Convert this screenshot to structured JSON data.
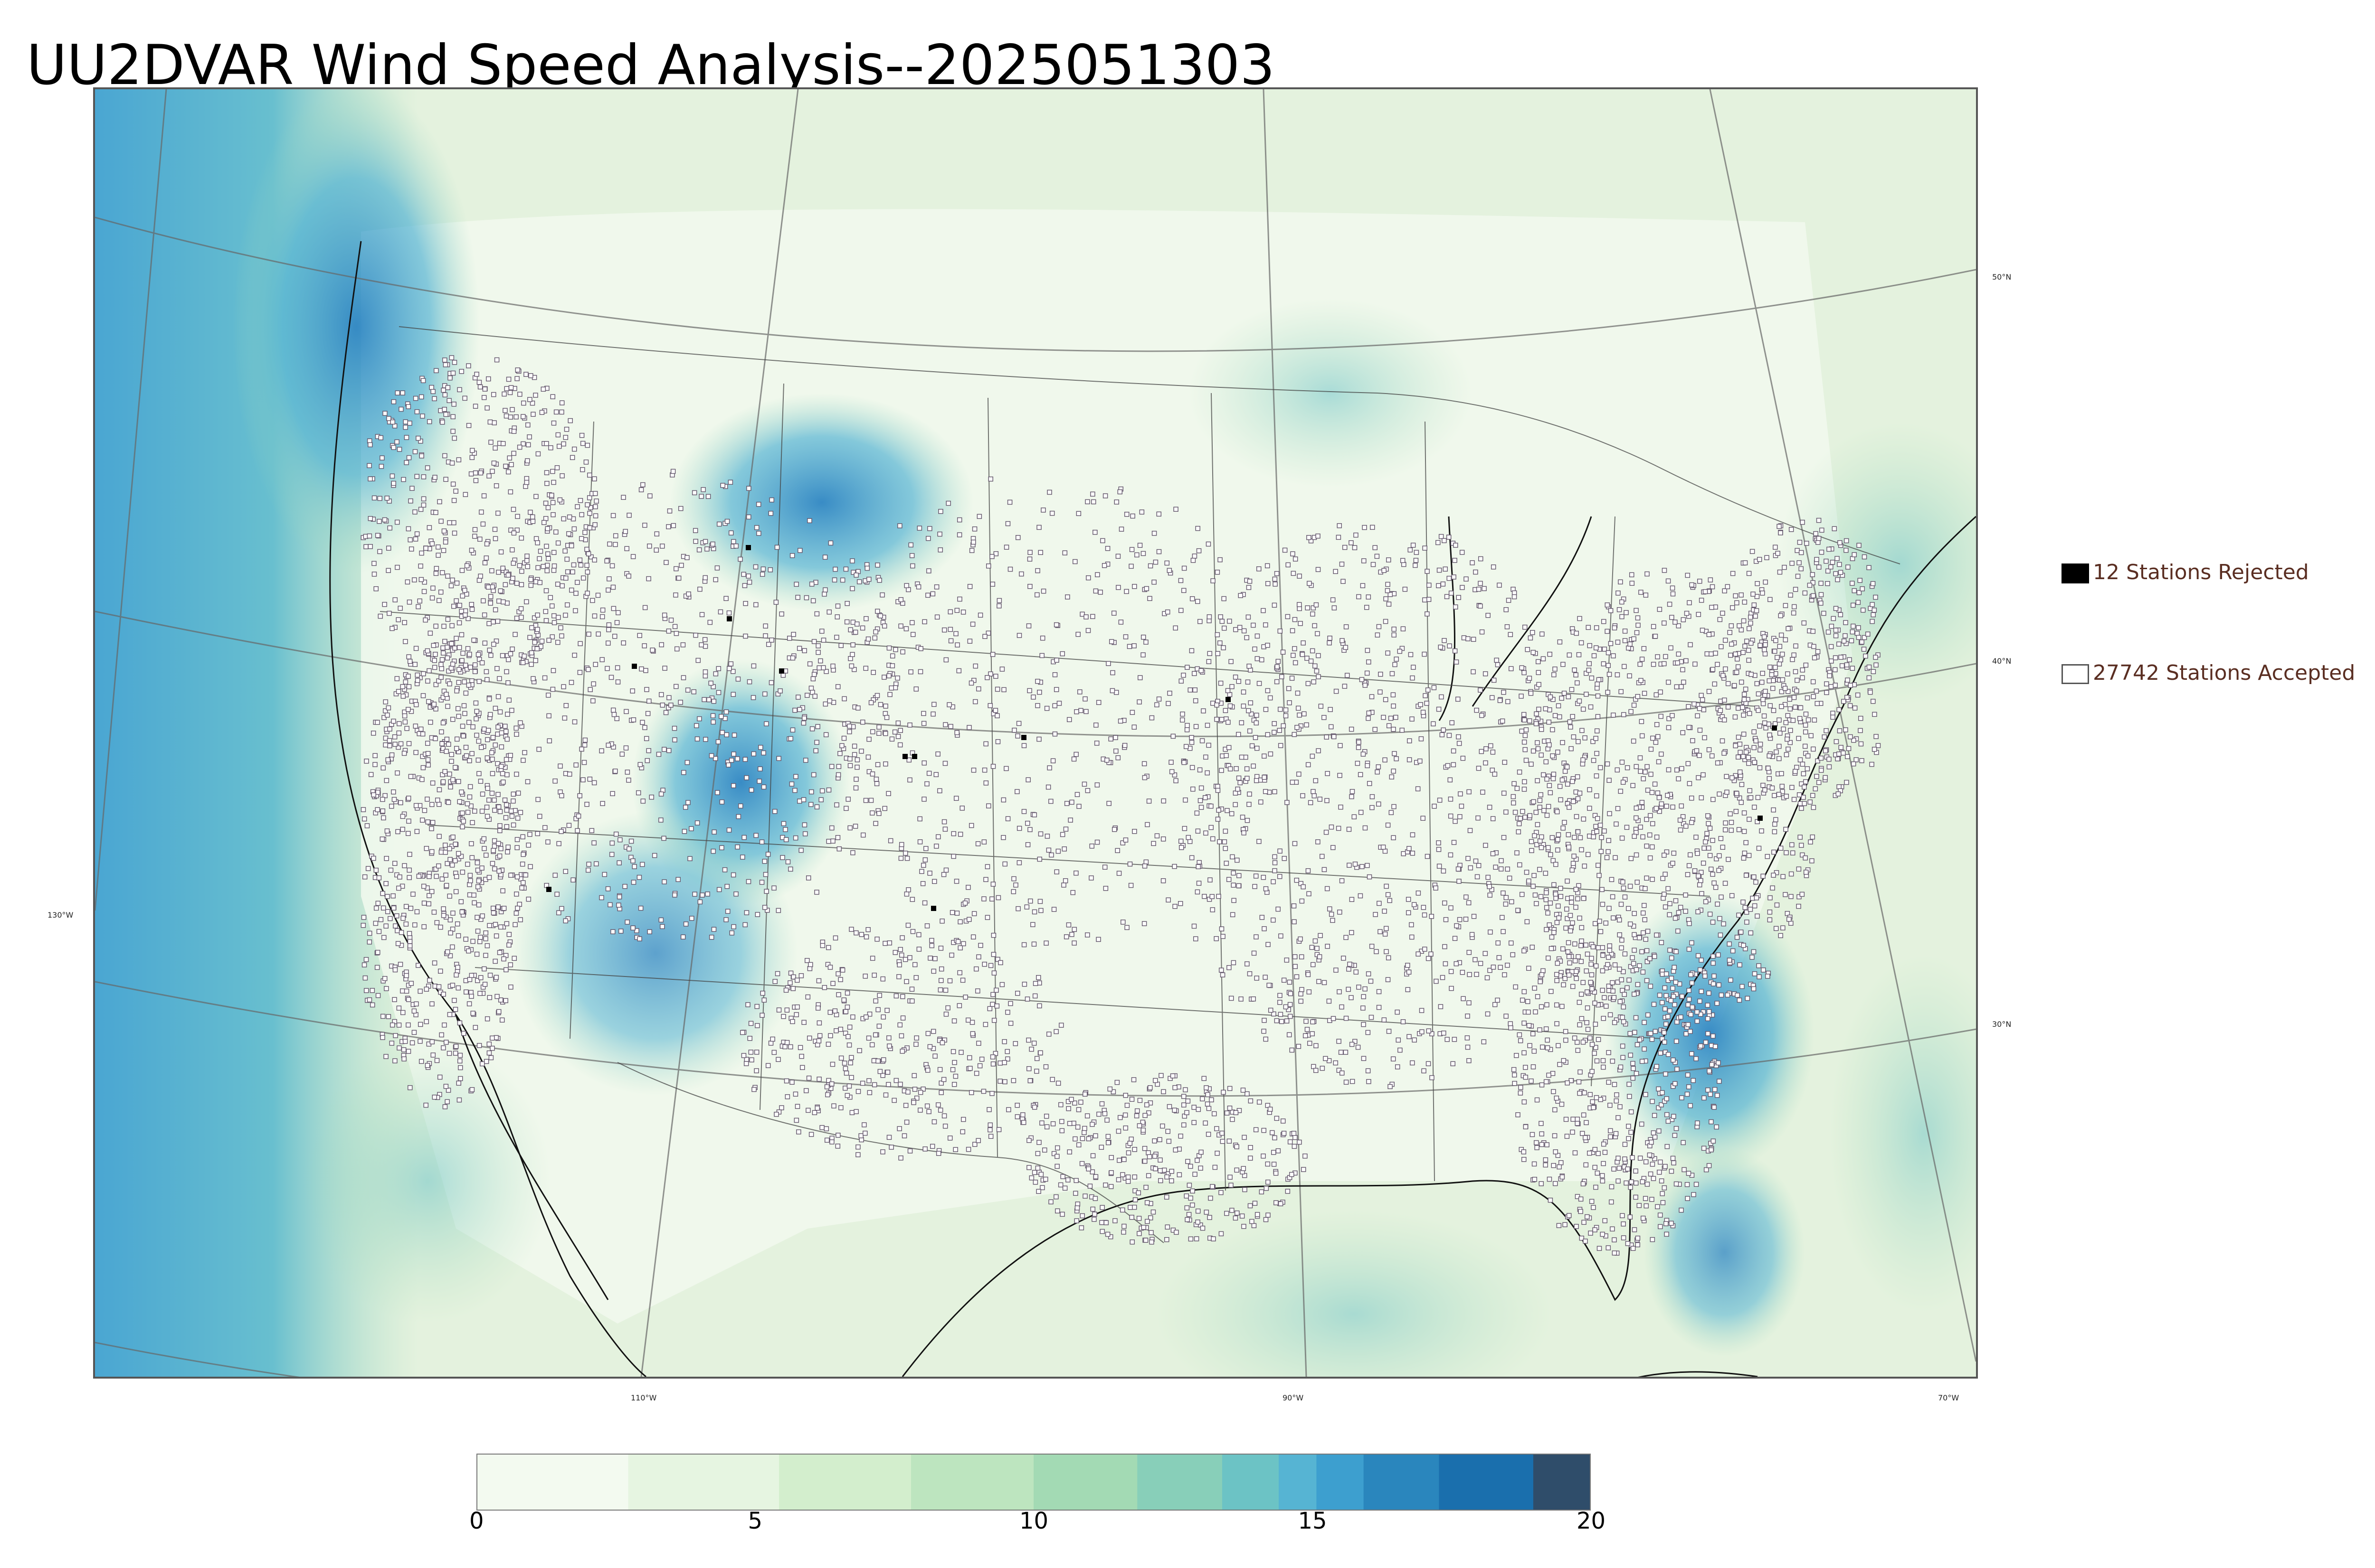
{
  "title": "UU2DVAR Wind Speed Analysis--2025051303",
  "legend": {
    "rejected": {
      "label": "12 Stations Rejected",
      "color": "#000000"
    },
    "accepted": {
      "label": "27742 Stations Accepted",
      "color": "#ffffff"
    }
  },
  "latitude_labels": [
    "50°N",
    "40°N",
    "30°N"
  ],
  "longitude_labels": [
    "130°W",
    "110°W",
    "90°W",
    "70°W"
  ],
  "colorbar": {
    "min": 0,
    "max": 20,
    "ticks": [
      "0",
      "5",
      "10",
      "15",
      "20"
    ],
    "colors": [
      "#f3faf0",
      "#e6f5e1",
      "#d3eecd",
      "#bde5bf",
      "#a3dab4",
      "#88cfb9",
      "#6cc3c5",
      "#56b4d3",
      "#3d9fcf",
      "#2a86bd",
      "#1a6fad",
      "#2f4d6a"
    ]
  }
}
